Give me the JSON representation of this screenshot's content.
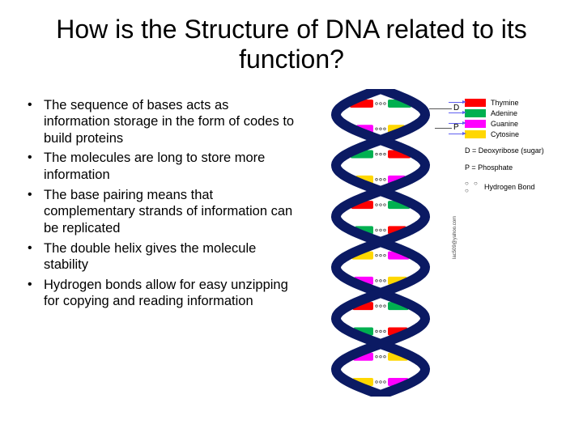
{
  "title": "How is the Structure of DNA related to its function?",
  "bullets": [
    "The sequence of bases acts as information storage in the form of codes to build proteins",
    "The molecules are long to store more information",
    "The base pairing means that complementary strands of information can be replicated",
    "The double helix gives the molecule stability",
    "Hydrogen bonds allow for easy unzipping for copying and reading information"
  ],
  "legend": {
    "bases": [
      {
        "label": "Thymine",
        "color": "#ff0000"
      },
      {
        "label": "Adenine",
        "color": "#00b050"
      },
      {
        "label": "Guanine",
        "color": "#ff00ff"
      },
      {
        "label": "Cytosine",
        "color": "#ffd700"
      }
    ],
    "d_label": "D = Deoxyribose (sugar)",
    "p_label": "P = Phosphate",
    "hbond_label": "Hydrogen Bond"
  },
  "pointers": {
    "d": "D",
    "p": "P"
  },
  "helix": {
    "backbone_color": "#0b1a63",
    "rungs": [
      {
        "left": "#ff0000",
        "right": "#00b050"
      },
      {
        "left": "#ff00ff",
        "right": "#ffd700"
      },
      {
        "left": "#00b050",
        "right": "#ff0000"
      },
      {
        "left": "#ffd700",
        "right": "#ff00ff"
      },
      {
        "left": "#ff0000",
        "right": "#00b050"
      },
      {
        "left": "#00b050",
        "right": "#ff0000"
      },
      {
        "left": "#ffd700",
        "right": "#ff00ff"
      },
      {
        "left": "#ff00ff",
        "right": "#ffd700"
      },
      {
        "left": "#ff0000",
        "right": "#00b050"
      },
      {
        "left": "#00b050",
        "right": "#ff0000"
      },
      {
        "left": "#ff00ff",
        "right": "#ffd700"
      },
      {
        "left": "#ffd700",
        "right": "#ff00ff"
      }
    ]
  },
  "credit": "lac509@yahoo.com"
}
